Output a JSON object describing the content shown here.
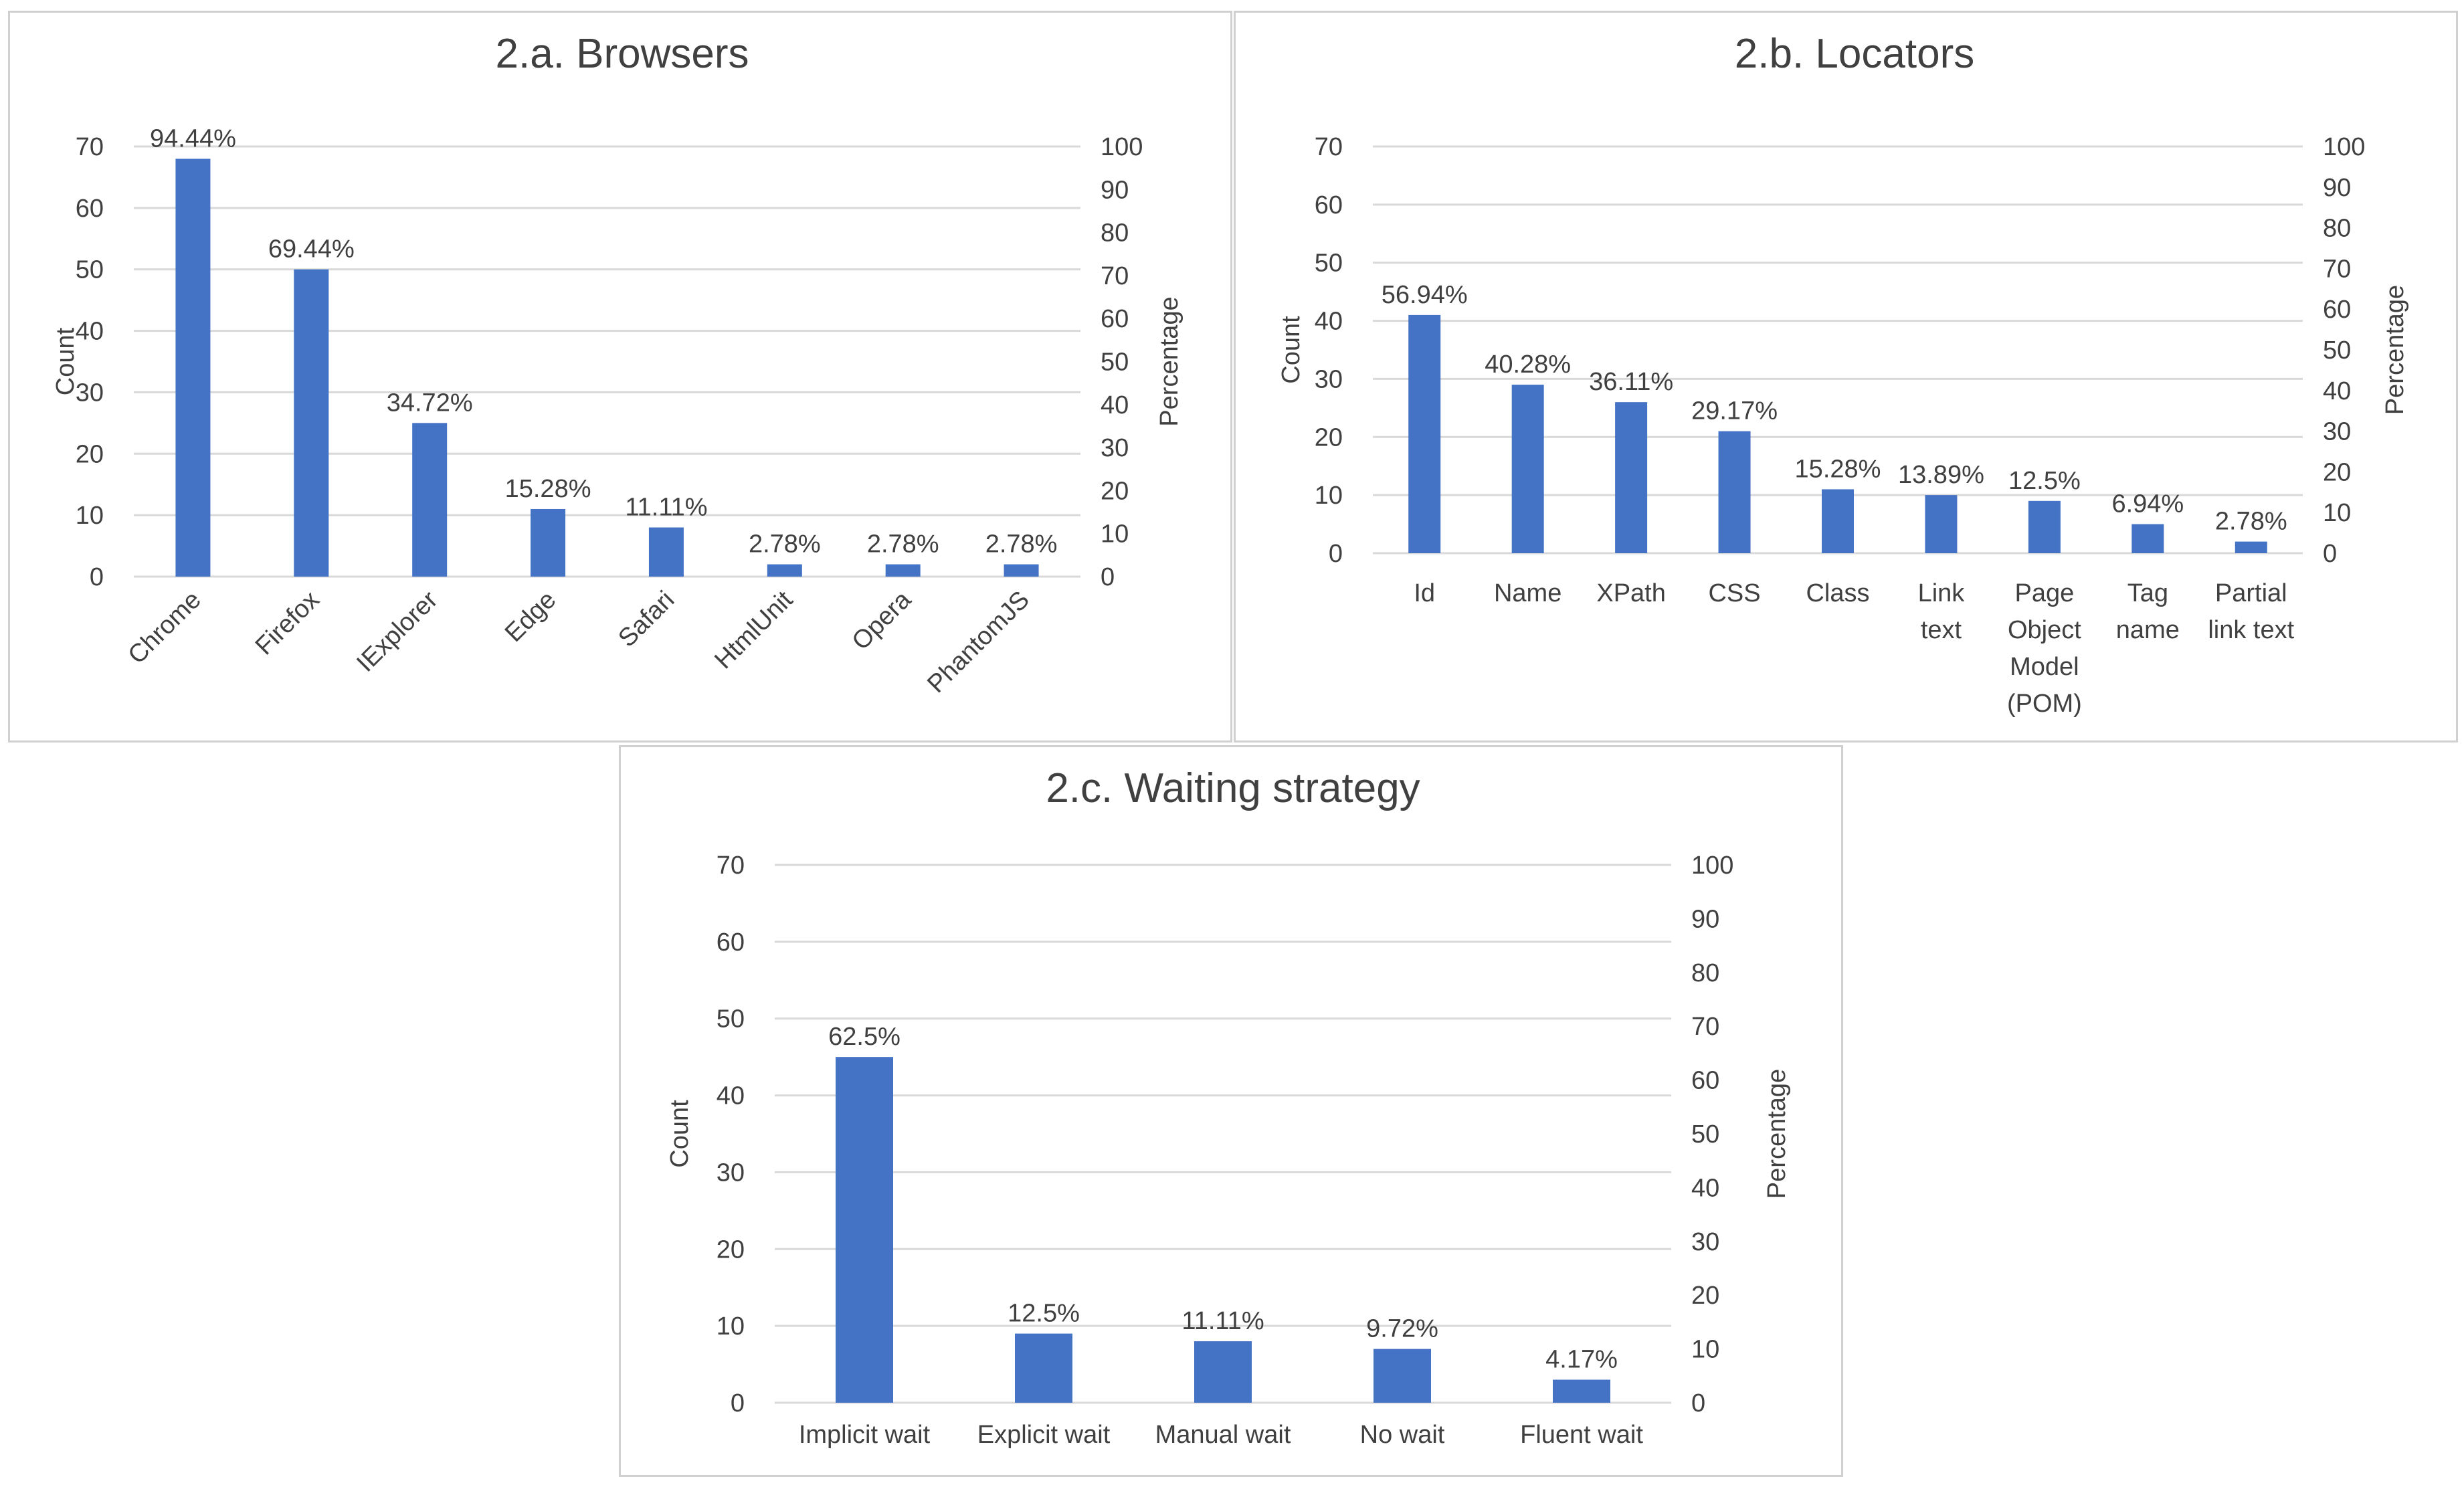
{
  "chart_data": [
    {
      "id": "a",
      "type": "bar",
      "title": "2.a. Browsers",
      "ylabel": "Count",
      "y2label": "Percentage",
      "ylim": [
        0,
        70
      ],
      "y2lim": [
        0,
        100
      ],
      "yticks": [
        "0",
        "10",
        "20",
        "30",
        "40",
        "50",
        "60",
        "70"
      ],
      "y2ticks": [
        "0",
        "10",
        "20",
        "30",
        "40",
        "50",
        "60",
        "70",
        "80",
        "90",
        "100"
      ],
      "grid": true,
      "rotated_labels": true,
      "categories": [
        "Chrome",
        "Firefox",
        "IExplorer",
        "Edge",
        "Safari",
        "HtmlUnit",
        "Opera",
        "PhantomJS"
      ],
      "values": [
        68,
        50,
        25,
        11,
        8,
        2,
        2,
        2
      ],
      "data_labels": [
        "94.44%",
        "69.44%",
        "34.72%",
        "15.28%",
        "11.11%",
        "2.78%",
        "2.78%",
        "2.78%"
      ]
    },
    {
      "id": "b",
      "type": "bar",
      "title": "2.b. Locators",
      "ylabel": "Count",
      "y2label": "Percentage",
      "ylim": [
        0,
        70
      ],
      "y2lim": [
        0,
        100
      ],
      "yticks": [
        "0",
        "10",
        "20",
        "30",
        "40",
        "50",
        "60",
        "70"
      ],
      "y2ticks": [
        "0",
        "10",
        "20",
        "30",
        "40",
        "50",
        "60",
        "70",
        "80",
        "90",
        "100"
      ],
      "grid": true,
      "rotated_labels": false,
      "categories": [
        [
          "Id"
        ],
        [
          "Name"
        ],
        [
          "XPath"
        ],
        [
          "CSS"
        ],
        [
          "Class"
        ],
        [
          "Link",
          "text"
        ],
        [
          "Page",
          "Object",
          "Model",
          "(POM)"
        ],
        [
          "Tag",
          "name"
        ],
        [
          "Partial",
          "link text"
        ]
      ],
      "values": [
        41,
        29,
        26,
        21,
        11,
        10,
        9,
        5,
        2
      ],
      "data_labels": [
        "56.94%",
        "40.28%",
        "36.11%",
        "29.17%",
        "15.28%",
        "13.89%",
        "12.5%",
        "6.94%",
        "2.78%"
      ]
    },
    {
      "id": "c",
      "type": "bar",
      "title": "2.c. Waiting strategy",
      "ylabel": "Count",
      "y2label": "Percentage",
      "ylim": [
        0,
        70
      ],
      "y2lim": [
        0,
        100
      ],
      "yticks": [
        "0",
        "10",
        "20",
        "30",
        "40",
        "50",
        "60",
        "70"
      ],
      "y2ticks": [
        "0",
        "10",
        "20",
        "30",
        "40",
        "50",
        "60",
        "70",
        "80",
        "90",
        "100"
      ],
      "grid": true,
      "rotated_labels": false,
      "categories": [
        [
          "Implicit wait"
        ],
        [
          "Explicit wait"
        ],
        [
          "Manual wait"
        ],
        [
          "No wait"
        ],
        [
          "Fluent wait"
        ]
      ],
      "values": [
        45,
        9,
        8,
        7,
        3
      ],
      "data_labels": [
        "62.5%",
        "12.5%",
        "11.11%",
        "9.72%",
        "4.17%"
      ]
    }
  ],
  "colors": {
    "bar": "#4472c4",
    "grid": "#d9d9d9",
    "text": "#404040",
    "border": "#d0d0d0"
  }
}
